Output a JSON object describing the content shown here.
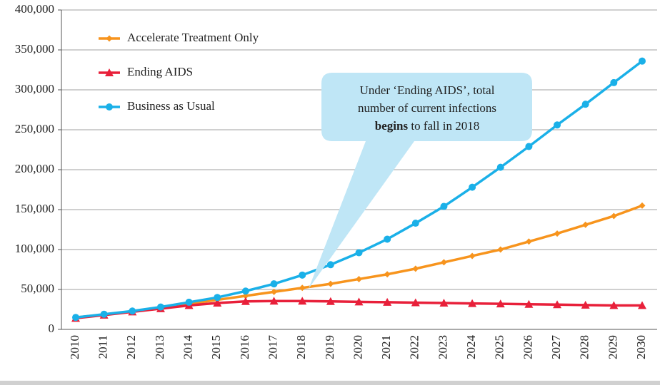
{
  "chart_data": {
    "type": "line",
    "categories": [
      "2010",
      "2011",
      "2012",
      "2013",
      "2014",
      "2015",
      "2016",
      "2017",
      "2018",
      "2019",
      "2020",
      "2021",
      "2022",
      "2023",
      "2024",
      "2025",
      "2026",
      "2027",
      "2028",
      "2029",
      "2030"
    ],
    "series": [
      {
        "name": "Accelerate Treatment Only",
        "color": "#f7941d",
        "marker": "diamond",
        "values": [
          15000,
          18500,
          22500,
          27000,
          32000,
          37000,
          42000,
          47000,
          52000,
          57000,
          63000,
          69000,
          76000,
          84000,
          92000,
          100000,
          110000,
          120000,
          131000,
          142000,
          155000
        ]
      },
      {
        "name": "Ending AIDS",
        "color": "#e8203a",
        "marker": "triangle",
        "values": [
          14000,
          18000,
          22000,
          26000,
          30000,
          33000,
          35000,
          35500,
          35500,
          35000,
          34500,
          34000,
          33500,
          33000,
          32500,
          32000,
          31500,
          31000,
          30500,
          30000,
          30000
        ]
      },
      {
        "name": "Business as Usual",
        "color": "#1ab0e8",
        "marker": "circle",
        "values": [
          15000,
          19000,
          23000,
          28000,
          34000,
          40000,
          48000,
          57000,
          68000,
          81000,
          96000,
          113000,
          133000,
          154000,
          178000,
          203000,
          229000,
          256000,
          282000,
          309000,
          336000
        ]
      }
    ],
    "ylim": [
      0,
      400000
    ],
    "yticks": [
      0,
      {
        "value": 50000,
        "label": "50,000"
      },
      {
        "value": 100000,
        "label": "100,000"
      },
      {
        "value": 150000,
        "label": "150,000"
      },
      {
        "value": 200000,
        "label": "200,000"
      },
      {
        "value": 250000,
        "label": "250,000"
      },
      {
        "value": 300000,
        "label": "300,000"
      },
      {
        "value": 350000,
        "label": "350,000"
      },
      {
        "value": 400000,
        "label": "400,000"
      }
    ],
    "grid": true,
    "legend": "top-left",
    "annotation": [
      "Under ‘Ending AIDS’, total",
      "number of current infections",
      "begins",
      "to fall in 2018"
    ]
  }
}
